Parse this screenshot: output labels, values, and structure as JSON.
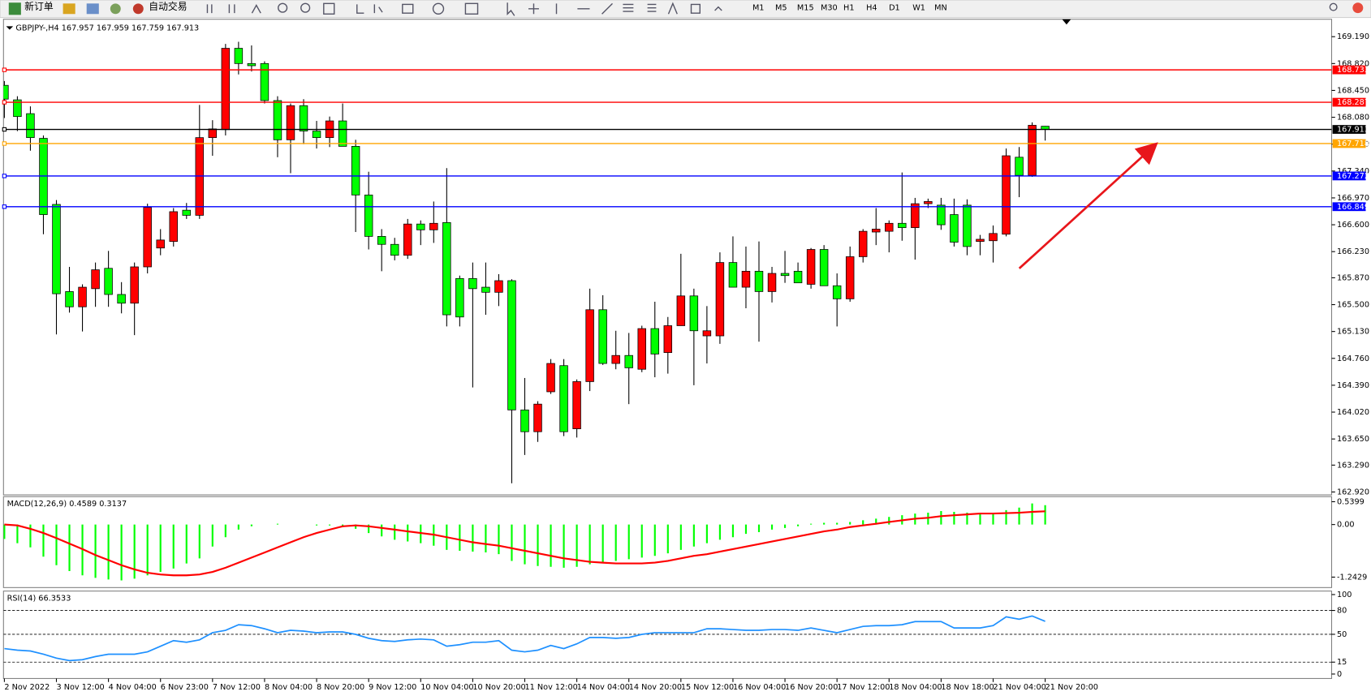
{
  "toolbar": {
    "buttons": [
      "新订单",
      "自动交易"
    ],
    "timeframes": [
      "M1",
      "M5",
      "M15",
      "M30",
      "H1",
      "H4",
      "D1",
      "W1",
      "MN"
    ]
  },
  "chart_data": [
    {
      "type": "candlestick",
      "title": "GBPJPY-,H4 167.957 167.959 167.759 167.913",
      "up_color": "#ff0000",
      "down_color": "#00ff00",
      "categories": [
        "2 Nov 2022",
        null,
        null,
        null,
        "3 Nov 12:00",
        null,
        null,
        null,
        "4 Nov 04:00",
        null,
        null,
        null,
        "6 Nov 23:00",
        null,
        null,
        null,
        "7 Nov 12:00",
        null,
        null,
        null,
        "8 Nov 04:00",
        null,
        null,
        null,
        "8 Nov 20:00",
        null,
        null,
        null,
        "9 Nov 12:00",
        null,
        null,
        null,
        "10 Nov 04:00",
        null,
        null,
        null,
        "10 Nov 20:00",
        null,
        null,
        null,
        "11 Nov 12:00",
        null,
        null,
        null,
        "14 Nov 04:00",
        null,
        null,
        null,
        "14 Nov 20:00",
        null,
        null,
        null,
        "15 Nov 12:00",
        null,
        null,
        null,
        "16 Nov 04:00",
        null,
        null,
        null,
        "16 Nov 20:00",
        null,
        null,
        null,
        "17 Nov 12:00",
        null,
        null,
        null,
        "18 Nov 04:00",
        null,
        null,
        null,
        "18 Nov 18:00",
        null,
        null,
        null,
        "21 Nov 04:00",
        null,
        null,
        null,
        "21 Nov 20:00"
      ],
      "open": [
        168.52,
        168.32,
        168.13,
        167.79,
        166.88,
        165.68,
        165.47,
        165.72,
        166.0,
        165.64,
        165.52,
        166.02,
        166.28,
        166.37,
        166.8,
        166.73,
        167.8,
        167.91,
        169.03,
        168.82,
        168.82,
        168.31,
        167.77,
        168.24,
        167.89,
        167.8,
        168.03,
        167.68,
        167.01,
        166.44,
        166.33,
        166.18,
        166.61,
        166.53,
        166.63,
        165.86,
        165.86,
        165.74,
        165.67,
        165.83,
        164.05,
        163.75,
        164.3,
        164.66,
        163.79,
        164.44,
        165.43,
        164.69,
        164.8,
        164.61,
        165.17,
        164.84,
        165.21,
        165.62,
        165.07,
        165.07,
        166.08,
        165.74,
        165.96,
        165.68,
        165.93,
        165.96,
        165.78,
        166.26,
        165.76,
        165.58,
        166.16,
        166.5,
        166.51,
        166.62,
        166.56,
        166.89,
        166.87,
        166.74,
        166.87,
        166.37,
        166.38,
        166.47,
        167.53,
        167.28,
        167.957
      ],
      "high": [
        168.58,
        168.37,
        168.23,
        167.83,
        166.94,
        166.02,
        165.78,
        166.08,
        166.24,
        165.81,
        166.08,
        166.89,
        166.54,
        166.83,
        166.9,
        168.25,
        168.04,
        169.09,
        169.12,
        169.07,
        168.85,
        168.37,
        168.27,
        168.33,
        168.03,
        168.09,
        168.27,
        167.77,
        167.33,
        166.54,
        166.42,
        166.68,
        166.66,
        166.92,
        167.38,
        165.9,
        166.08,
        166.08,
        165.92,
        165.85,
        164.49,
        164.17,
        164.75,
        164.75,
        164.47,
        165.72,
        165.63,
        165.14,
        165.11,
        165.21,
        165.54,
        165.33,
        166.2,
        165.72,
        165.48,
        166.22,
        166.44,
        166.3,
        166.37,
        166.02,
        166.24,
        166.08,
        166.28,
        166.32,
        165.93,
        166.3,
        166.54,
        166.83,
        166.66,
        167.32,
        166.97,
        166.96,
        166.97,
        166.96,
        166.95,
        166.46,
        166.59,
        167.65,
        167.67,
        168.01,
        167.959
      ],
      "low": [
        168.07,
        167.89,
        167.62,
        166.47,
        165.09,
        165.39,
        165.13,
        165.47,
        165.47,
        165.38,
        165.08,
        165.93,
        166.18,
        166.3,
        166.68,
        166.68,
        167.55,
        167.83,
        168.67,
        168.71,
        168.27,
        167.53,
        167.31,
        167.71,
        167.65,
        167.67,
        167.68,
        166.5,
        166.26,
        165.96,
        166.11,
        166.13,
        166.32,
        166.35,
        165.2,
        165.2,
        164.36,
        165.36,
        165.48,
        163.04,
        163.43,
        163.61,
        164.27,
        163.69,
        163.67,
        164.31,
        164.67,
        164.61,
        164.13,
        164.57,
        164.5,
        164.55,
        165.21,
        164.39,
        164.69,
        164.96,
        165.74,
        165.45,
        164.99,
        165.53,
        165.8,
        165.8,
        165.72,
        165.76,
        165.2,
        165.54,
        166.08,
        166.32,
        166.22,
        166.38,
        166.12,
        166.83,
        166.53,
        166.3,
        166.18,
        166.18,
        166.08,
        166.44,
        166.98,
        167.26,
        167.759
      ],
      "close": [
        168.33,
        168.09,
        167.8,
        166.74,
        165.65,
        165.47,
        165.74,
        165.98,
        165.64,
        165.52,
        166.02,
        166.84,
        166.39,
        166.78,
        166.73,
        167.8,
        167.92,
        169.03,
        168.82,
        168.79,
        168.31,
        167.77,
        168.24,
        167.89,
        167.8,
        168.03,
        167.68,
        167.01,
        166.44,
        166.33,
        166.18,
        166.61,
        166.53,
        166.62,
        165.36,
        165.33,
        165.72,
        165.67,
        165.83,
        164.05,
        163.75,
        164.13,
        164.69,
        163.75,
        164.44,
        165.43,
        164.69,
        164.8,
        164.63,
        165.17,
        164.82,
        165.21,
        165.62,
        165.14,
        165.14,
        166.08,
        165.74,
        165.96,
        165.68,
        165.93,
        165.9,
        165.8,
        166.26,
        165.76,
        165.58,
        166.16,
        166.51,
        166.54,
        166.62,
        166.56,
        166.89,
        166.92,
        166.6,
        166.36,
        166.3,
        166.4,
        166.48,
        167.55,
        167.28,
        167.97,
        167.913
      ],
      "ylim": [
        162.88,
        169.43
      ],
      "yticks": [
        {
          "value": 169.19,
          "label": "169.190"
        },
        {
          "value": 168.82,
          "label": "168.820"
        },
        {
          "value": 168.45,
          "label": "168.450"
        },
        {
          "value": 168.08,
          "label": "168.080"
        },
        {
          "value": 167.71,
          "label": "167.710"
        },
        {
          "value": 167.34,
          "label": "167.340"
        },
        {
          "value": 166.97,
          "label": "166.970"
        },
        {
          "value": 166.6,
          "label": "166.600"
        },
        {
          "value": 166.23,
          "label": "166.230"
        },
        {
          "value": 165.87,
          "label": "165.870"
        },
        {
          "value": 165.5,
          "label": "165.500"
        },
        {
          "value": 165.13,
          "label": "165.130"
        },
        {
          "value": 164.76,
          "label": "164.760"
        },
        {
          "value": 164.39,
          "label": "164.390"
        },
        {
          "value": 164.02,
          "label": "164.020"
        },
        {
          "value": 163.65,
          "label": "163.650"
        },
        {
          "value": 163.29,
          "label": "163.290"
        },
        {
          "value": 162.92,
          "label": "162.920"
        }
      ],
      "hlines": [
        {
          "value": 168.733,
          "color": "#ff0000"
        },
        {
          "value": 168.287,
          "color": "#ff0000"
        },
        {
          "value": 167.913,
          "color": "#000000"
        },
        {
          "value": 167.718,
          "color": "#ffa500"
        },
        {
          "value": 167.272,
          "color": "#0000ff"
        },
        {
          "value": 166.849,
          "color": "#0000ff"
        }
      ]
    },
    {
      "type": "macd",
      "title": "MACD(12,26,9) 0.4589 0.3137",
      "ylim": [
        -1.49,
        0.66
      ],
      "yticks": [
        0.5399,
        {
          "value": 0,
          "label": "0.00"
        },
        -1.2429
      ],
      "series": [
        {
          "kind": "histogram",
          "color": "#00ff00",
          "values": [
            -0.34,
            -0.44,
            -0.54,
            -0.76,
            -0.96,
            -1.1,
            -1.2,
            -1.26,
            -1.3,
            -1.32,
            -1.28,
            -1.2,
            -1.12,
            -1.04,
            -0.92,
            -0.8,
            -0.52,
            -0.3,
            -0.12,
            -0.04,
            0,
            0.02,
            0,
            0,
            -0.02,
            -0.02,
            -0.06,
            -0.1,
            -0.2,
            -0.28,
            -0.36,
            -0.4,
            -0.44,
            -0.5,
            -0.6,
            -0.62,
            -0.64,
            -0.66,
            -0.7,
            -0.86,
            -0.94,
            -0.98,
            -1.0,
            -1.02,
            -1.0,
            -0.94,
            -0.9,
            -0.86,
            -0.82,
            -0.78,
            -0.74,
            -0.68,
            -0.6,
            -0.52,
            -0.44,
            -0.36,
            -0.3,
            -0.22,
            -0.18,
            -0.12,
            -0.08,
            -0.04,
            0.02,
            0.04,
            0.04,
            0.06,
            0.1,
            0.14,
            0.18,
            0.22,
            0.26,
            0.28,
            0.32,
            0.3,
            0.28,
            0.26,
            0.26,
            0.34,
            0.4,
            0.5,
            0.4589
          ]
        },
        {
          "kind": "line",
          "color": "#ff0000",
          "values": [
            0,
            -0.02,
            -0.1,
            -0.2,
            -0.32,
            -0.45,
            -0.58,
            -0.72,
            -0.84,
            -0.96,
            -1.06,
            -1.14,
            -1.18,
            -1.2,
            -1.2,
            -1.18,
            -1.12,
            -1.02,
            -0.9,
            -0.78,
            -0.66,
            -0.54,
            -0.42,
            -0.3,
            -0.2,
            -0.12,
            -0.04,
            -0.02,
            -0.04,
            -0.08,
            -0.12,
            -0.16,
            -0.2,
            -0.24,
            -0.3,
            -0.36,
            -0.42,
            -0.46,
            -0.5,
            -0.56,
            -0.62,
            -0.68,
            -0.74,
            -0.8,
            -0.84,
            -0.88,
            -0.9,
            -0.92,
            -0.92,
            -0.92,
            -0.9,
            -0.86,
            -0.8,
            -0.74,
            -0.7,
            -0.64,
            -0.58,
            -0.52,
            -0.46,
            -0.4,
            -0.34,
            -0.28,
            -0.22,
            -0.16,
            -0.12,
            -0.06,
            -0.02,
            0.02,
            0.06,
            0.1,
            0.14,
            0.16,
            0.2,
            0.22,
            0.24,
            0.26,
            0.26,
            0.27,
            0.28,
            0.3,
            0.3137
          ]
        }
      ]
    },
    {
      "type": "rsi",
      "title": "RSI(14) 66.3533",
      "ylim": [
        -5.6,
        104.4
      ],
      "yticks": [
        100,
        80,
        50,
        15,
        0
      ],
      "series": [
        {
          "kind": "line",
          "color": "#1e90ff",
          "values": [
            32,
            30,
            29,
            25,
            20,
            17,
            18,
            22,
            25,
            25,
            25,
            28,
            35,
            42,
            40,
            43,
            52,
            55,
            62,
            61,
            57,
            52,
            55,
            54,
            52,
            53,
            53,
            50,
            45,
            42,
            41,
            43,
            44,
            43,
            35,
            37,
            40,
            40,
            42,
            30,
            28,
            30,
            36,
            32,
            38,
            46,
            46,
            45,
            46,
            50,
            52,
            52,
            52,
            52,
            57,
            57,
            56,
            55,
            55,
            56,
            56,
            55,
            58,
            55,
            52,
            56,
            60,
            61,
            61,
            62,
            66,
            66,
            66,
            58,
            58,
            58,
            61,
            72,
            69,
            73,
            66.3533
          ]
        }
      ]
    }
  ]
}
